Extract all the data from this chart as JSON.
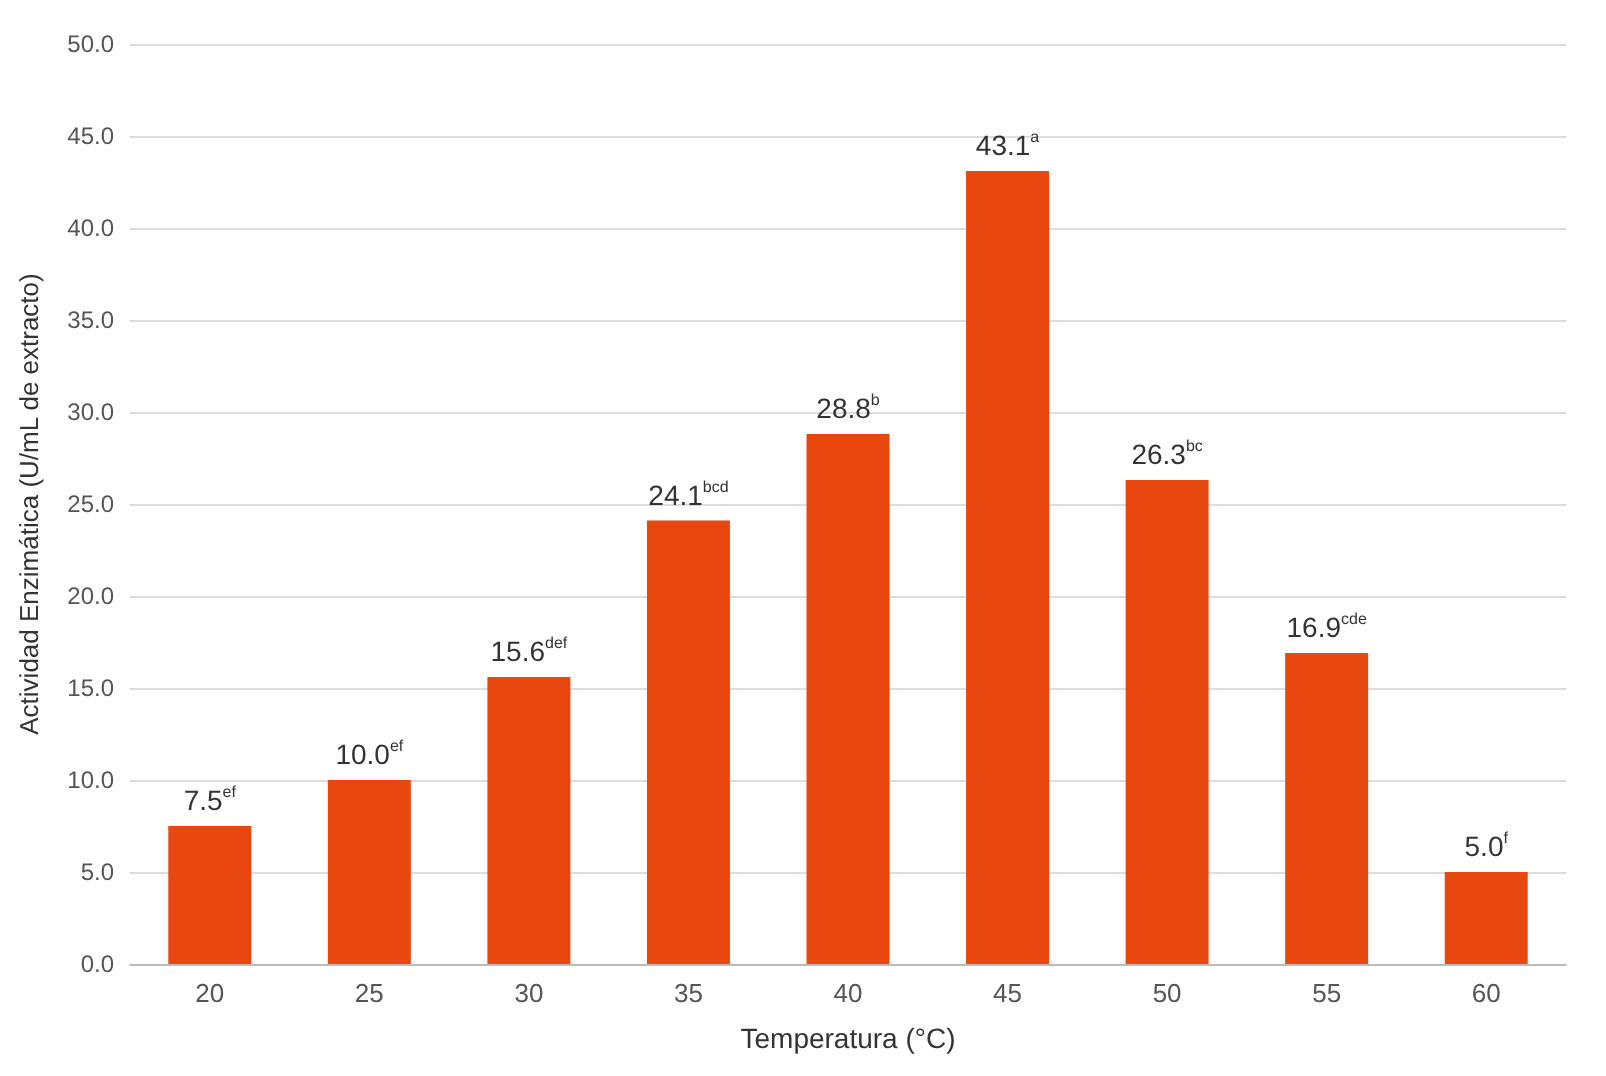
{
  "chart_data": {
    "type": "bar",
    "xlabel": "Temperatura (°C)",
    "ylabel": "Actividad Enzimática (U/mL de extracto)",
    "categories": [
      "20",
      "25",
      "30",
      "35",
      "40",
      "45",
      "50",
      "55",
      "60"
    ],
    "values": [
      7.5,
      10.0,
      15.6,
      24.1,
      28.8,
      43.1,
      26.3,
      16.9,
      5.0
    ],
    "value_labels": [
      "7.5$^{ef}$",
      "10.0$^{ef}$",
      "15.6$^{def}$",
      "24.1$^{bcd}$",
      "28.8$^{b}$",
      "43.1$^{a}$",
      "26.3$^{bc}$",
      "16.9$^{cde}$",
      "5.0$^{f}$"
    ],
    "color": "#e8470f",
    "ylim": [
      0,
      50
    ],
    "yticks": [
      {
        "value": 0,
        "label": "0.0"
      },
      {
        "value": 5,
        "label": "5.0"
      },
      {
        "value": 10,
        "label": "10.0"
      },
      {
        "value": 15,
        "label": "15.0"
      },
      {
        "value": 20,
        "label": "20.0"
      },
      {
        "value": 25,
        "label": "25.0"
      },
      {
        "value": 30,
        "label": "30.0"
      },
      {
        "value": 35,
        "label": "35.0"
      },
      {
        "value": 40,
        "label": "40.0"
      },
      {
        "value": 45,
        "label": "45.0"
      },
      {
        "value": 50,
        "label": "50.0"
      }
    ],
    "grid": "y"
  }
}
